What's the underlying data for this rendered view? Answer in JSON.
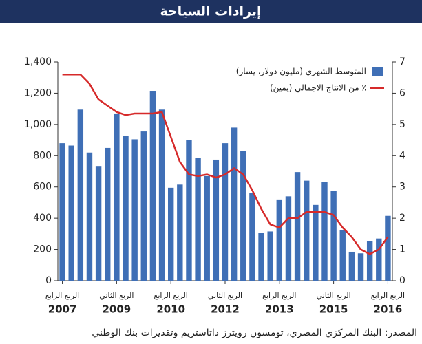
{
  "title": "إيرادات السياحة",
  "source": "المصدر: البنك المركزي المصري، تومسون رويترز داتاستريم وتقديرات بنك الوطني",
  "chart_data": {
    "type": "bar-line",
    "categories": [
      "الربع الرابع",
      null,
      null,
      null,
      null,
      null,
      "الربع الثاني",
      null,
      null,
      null,
      null,
      null,
      "الربع الرابع",
      null,
      null,
      null,
      null,
      null,
      "الربع الثاني",
      null,
      null,
      null,
      null,
      null,
      "الربع الرابع",
      null,
      null,
      null,
      null,
      null,
      "الربع الثاني",
      null,
      null,
      null,
      null,
      null,
      "الربع الرابع"
    ],
    "category_years": [
      "2007",
      null,
      null,
      null,
      null,
      null,
      "2009",
      null,
      null,
      null,
      null,
      null,
      "2010",
      null,
      null,
      null,
      null,
      null,
      "2012",
      null,
      null,
      null,
      null,
      null,
      "2013",
      null,
      null,
      null,
      null,
      null,
      "2015",
      null,
      null,
      null,
      null,
      null,
      "2016"
    ],
    "series": [
      {
        "name": "المتوسط الشهري (مليون دولار، يسار)",
        "color": "#3f6fb6",
        "kind": "bar",
        "values": [
          880,
          865,
          1095,
          820,
          730,
          850,
          1070,
          925,
          905,
          955,
          1215,
          1095,
          595,
          615,
          900,
          785,
          670,
          775,
          880,
          980,
          830,
          560,
          305,
          315,
          520,
          540,
          695,
          640,
          485,
          630,
          575,
          325,
          185,
          175,
          255,
          270,
          415
        ]
      },
      {
        "name": "٪ من الانتاج الاجمالي (يمين)",
        "color": "#d62a2a",
        "kind": "line",
        "axis": "y2",
        "values": [
          6.6,
          6.6,
          6.6,
          6.3,
          5.8,
          5.6,
          5.4,
          5.3,
          5.35,
          5.35,
          5.35,
          5.4,
          4.6,
          3.8,
          3.4,
          3.35,
          3.4,
          3.3,
          3.4,
          3.6,
          3.4,
          2.9,
          2.3,
          1.8,
          1.7,
          2.0,
          2.0,
          2.2,
          2.2,
          2.2,
          2.1,
          1.7,
          1.4,
          1.0,
          0.85,
          1.0,
          1.4
        ]
      }
    ],
    "ylim": [
      0,
      1400
    ],
    "yticks": [
      0,
      200,
      400,
      600,
      800,
      {
        "value": 1000,
        "label": "1,000"
      },
      {
        "value": 1200,
        "label": "1,200"
      },
      {
        "value": 1400,
        "label": "1,400"
      }
    ],
    "y2lim": [
      0,
      7
    ],
    "y2ticks": [
      0,
      1,
      2,
      3,
      4,
      5,
      6,
      7
    ]
  }
}
